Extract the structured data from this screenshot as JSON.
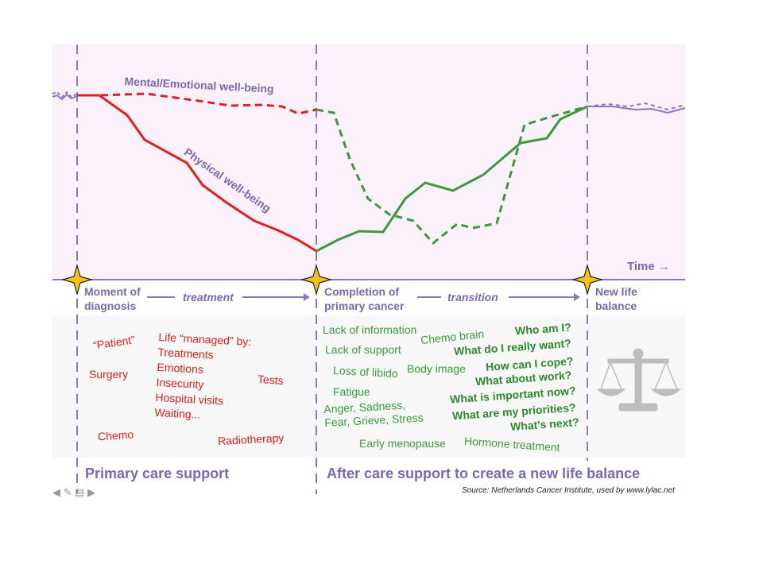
{
  "chart": {
    "curve_mental_label": "Mental/Emotional well-being",
    "curve_physical_label": "Physical well-being",
    "time_label": "Time →"
  },
  "milestones": {
    "diagnosis": [
      "Moment of",
      "diagnosis"
    ],
    "completion": [
      "Completion of",
      "primary cancer"
    ],
    "new_life": [
      "New life",
      "balance"
    ]
  },
  "phases": {
    "treatment": "treatment",
    "transition": "transition"
  },
  "primary_issues": {
    "patient": "“Patient”",
    "life_managed": [
      "Life “managed” by:",
      "Treatments",
      "Emotions",
      "Insecurity",
      "Hospital visits",
      "Waiting..."
    ],
    "surgery": "Surgery",
    "tests": "Tests",
    "chemo": "Chemo",
    "radiotherapy": "Radiotherapy"
  },
  "after_issues": {
    "lack_info": "Lack of information",
    "chemo_brain": "Chemo brain",
    "lack_support": "Lack of support",
    "loss_libido": "Loss of libido",
    "body_image": "Body image",
    "fatigue": "Fatigue",
    "emotions": [
      "Anger, Sadness,",
      "Fear, Grieve, Stress"
    ],
    "early_menopause": "Early menopause",
    "hormone": "Hormone treatment"
  },
  "questions": [
    "Who am I?",
    "What do I really want?",
    "How can I cope?",
    "What  about work?",
    "What is important now?",
    "What are my priorities?",
    "What's next?"
  ],
  "footer": {
    "primary": "Primary care support",
    "after": "After care support to create a new life balance",
    "source": "Source: Netherlands Cancer Institute, used by www.lylac.net"
  },
  "colors": {
    "panel_bg": "#fbf1fb",
    "purple": "#8c78c0",
    "red": "#e02020",
    "green": "#3c9a3c",
    "star": "#f5c21a"
  }
}
